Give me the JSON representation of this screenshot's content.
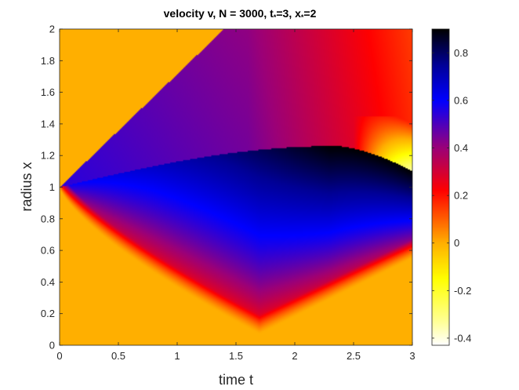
{
  "chart_data": {
    "type": "heatmap",
    "title": "velocity v, N = 3000, t",
    "title_parts": {
      "main": "velocity v, N = 3000, t",
      "t_sub": "*",
      "t_value": "=3, x",
      "x_sub": "*",
      "x_value": "=2"
    },
    "xlabel": "time t",
    "ylabel": "radius x",
    "xlim": [
      0,
      3
    ],
    "ylim": [
      0,
      2
    ],
    "x_ticks": [
      "0",
      "0.5",
      "1",
      "1.5",
      "2",
      "2.5",
      "3"
    ],
    "x_tick_values": [
      0,
      0.5,
      1,
      1.5,
      2,
      2.5,
      3
    ],
    "y_ticks": [
      "0",
      "0.2",
      "0.4",
      "0.6",
      "0.8",
      "1",
      "1.2",
      "1.4",
      "1.6",
      "1.8",
      "2"
    ],
    "y_tick_values": [
      0,
      0.2,
      0.4,
      0.6,
      0.8,
      1,
      1.2,
      1.4,
      1.6,
      1.8,
      2
    ],
    "colorbar": {
      "limits": [
        -0.43,
        0.9
      ],
      "ticks": [
        "-0.4",
        "-0.2",
        "0",
        "0.2",
        "0.4",
        "0.6",
        "0.8"
      ],
      "tick_values": [
        -0.4,
        -0.2,
        0,
        0.2,
        0.4,
        0.6,
        0.8
      ],
      "colormap": "hot-blue"
    },
    "background_value": 0,
    "regions": [
      {
        "name": "upper-characteristic",
        "from": [
          0,
          1
        ],
        "to": [
          1.4,
          2
        ]
      },
      {
        "name": "lower-characteristic",
        "from": [
          0,
          1
        ],
        "to": [
          1.7,
          0.07
        ]
      },
      {
        "name": "shock-curve",
        "from": [
          0,
          1
        ],
        "peak": [
          2.35,
          1.26
        ],
        "to": [
          3,
          1.1
        ]
      }
    ]
  }
}
